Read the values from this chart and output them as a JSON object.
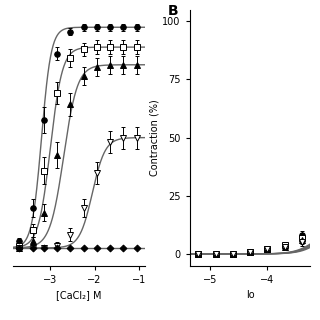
{
  "panel_A": {
    "xlabel": "[CaCl₂] M",
    "xlim": [
      -3.85,
      -0.85
    ],
    "xticks": [
      -3,
      -2,
      -1
    ],
    "ylim": [
      -8,
      108
    ],
    "series": [
      {
        "marker": "o",
        "fillstyle": "full",
        "x": [
          -3.7,
          -3.4,
          -3.15,
          -2.85,
          -2.55,
          -2.25,
          -1.95,
          -1.65,
          -1.35,
          -1.05
        ],
        "y": [
          3,
          18,
          58,
          88,
          98,
          100,
          100,
          100,
          100,
          100
        ],
        "yerr": [
          1.5,
          4,
          6,
          3,
          1.5,
          1.5,
          1.5,
          1.5,
          1.5,
          1.5
        ],
        "ec50_log": -3.2,
        "hill": 4.0,
        "ymax": 100
      },
      {
        "marker": "s",
        "fillstyle": "none",
        "x": [
          -3.7,
          -3.4,
          -3.15,
          -2.85,
          -2.55,
          -2.25,
          -1.95,
          -1.65,
          -1.35,
          -1.05
        ],
        "y": [
          1,
          8,
          35,
          70,
          86,
          90,
          91,
          91,
          91,
          91
        ],
        "yerr": [
          1,
          3,
          6,
          5,
          4,
          3,
          3,
          3,
          3,
          3
        ],
        "ec50_log": -3.0,
        "hill": 3.2,
        "ymax": 91
      },
      {
        "marker": "^",
        "fillstyle": "full",
        "x": [
          -3.7,
          -3.4,
          -3.15,
          -2.85,
          -2.55,
          -2.25,
          -1.95,
          -1.65,
          -1.35,
          -1.05
        ],
        "y": [
          0,
          3,
          16,
          42,
          65,
          78,
          82,
          83,
          83,
          83
        ],
        "yerr": [
          1,
          2,
          4,
          6,
          5,
          4,
          4,
          4,
          4,
          4
        ],
        "ec50_log": -2.7,
        "hill": 2.8,
        "ymax": 83
      },
      {
        "marker": "v",
        "fillstyle": "none",
        "x": [
          -3.7,
          -3.4,
          -3.15,
          -2.85,
          -2.55,
          -2.25,
          -1.95,
          -1.65,
          -1.35,
          -1.05
        ],
        "y": [
          0,
          0,
          0,
          1,
          6,
          18,
          34,
          48,
          50,
          50
        ],
        "yerr": [
          0.5,
          0.5,
          0.5,
          1.5,
          3,
          4,
          5,
          5,
          5,
          5
        ],
        "ec50_log": -2.05,
        "hill": 3.0,
        "ymax": 50
      },
      {
        "marker": "D",
        "fillstyle": "full",
        "x": [
          -3.7,
          -3.4,
          -3.15,
          -2.85,
          -2.55,
          -2.25,
          -1.95,
          -1.65,
          -1.35,
          -1.05
        ],
        "y": [
          0,
          0,
          0,
          0,
          0,
          0,
          0,
          0,
          0,
          0
        ],
        "yerr": [
          0.5,
          0.5,
          0.5,
          0.5,
          0.5,
          0.5,
          0.5,
          0.5,
          0.5,
          0.5
        ],
        "ec50_log": -1.0,
        "hill": 2.0,
        "ymax": 0
      }
    ]
  },
  "panel_B": {
    "xlabel": "lo",
    "xlim": [
      -5.35,
      -3.25
    ],
    "xticks": [
      -5,
      -4
    ],
    "ylim": [
      -5,
      105
    ],
    "yticks": [
      0,
      25,
      50,
      75,
      100
    ],
    "ylabel": "Contraction (%)",
    "label": "B",
    "series": [
      {
        "marker": "o",
        "fillstyle": "full",
        "x": [
          -5.2,
          -4.9,
          -4.6,
          -4.3,
          -4.0,
          -3.7,
          -3.4
        ],
        "y": [
          0,
          0,
          0,
          1,
          2,
          4,
          8
        ],
        "yerr": [
          0.3,
          0.3,
          0.3,
          0.5,
          0.8,
          1.2,
          2
        ],
        "ec50_log": -3.0,
        "hill": 2.5,
        "ymax": 15
      },
      {
        "marker": "s",
        "fillstyle": "none",
        "x": [
          -5.2,
          -4.9,
          -4.6,
          -4.3,
          -4.0,
          -3.7,
          -3.4
        ],
        "y": [
          0,
          0,
          0,
          1,
          2,
          4,
          7
        ],
        "yerr": [
          0.3,
          0.3,
          0.3,
          0.5,
          0.8,
          1.2,
          2
        ],
        "ec50_log": -3.05,
        "hill": 2.5,
        "ymax": 14
      },
      {
        "marker": "^",
        "fillstyle": "full",
        "x": [
          -5.2,
          -4.9,
          -4.6,
          -4.3,
          -4.0,
          -3.7,
          -3.4
        ],
        "y": [
          0,
          0,
          0,
          1,
          2,
          3,
          6
        ],
        "yerr": [
          0.3,
          0.3,
          0.3,
          0.5,
          0.8,
          1.0,
          1.8
        ],
        "ec50_log": -3.1,
        "hill": 2.5,
        "ymax": 13
      },
      {
        "marker": "v",
        "fillstyle": "none",
        "x": [
          -5.2,
          -4.9,
          -4.6,
          -4.3,
          -4.0,
          -3.7,
          -3.4
        ],
        "y": [
          0,
          0,
          0,
          1,
          2,
          3,
          5
        ],
        "yerr": [
          0.3,
          0.3,
          0.3,
          0.5,
          0.8,
          1.0,
          1.5
        ],
        "ec50_log": -3.15,
        "hill": 2.5,
        "ymax": 12
      }
    ]
  },
  "background_color": "#ffffff",
  "line_color": "#666666",
  "marker_size": 4,
  "line_width": 1.0,
  "font_size": 7
}
